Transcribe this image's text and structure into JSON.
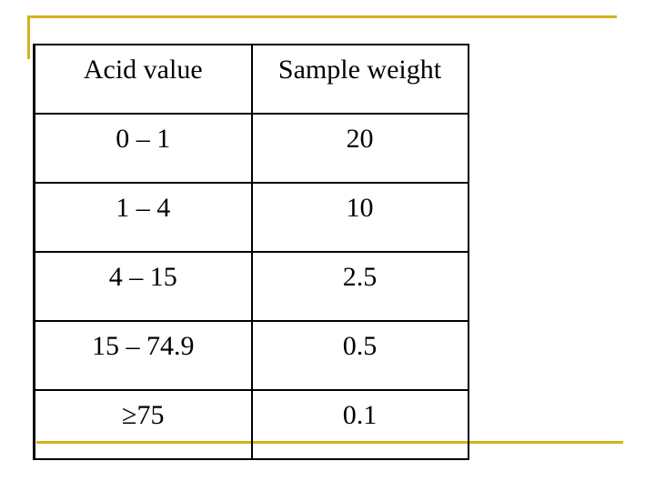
{
  "table": {
    "header": [
      "Acid value",
      "Sample weight"
    ],
    "rows": [
      [
        "0 – 1",
        "20"
      ],
      [
        "1 – 4",
        "10"
      ],
      [
        "4 – 15",
        "2.5"
      ],
      [
        "15 – 74.9",
        "0.5"
      ],
      [
        "≥75",
        "0.1"
      ]
    ]
  }
}
